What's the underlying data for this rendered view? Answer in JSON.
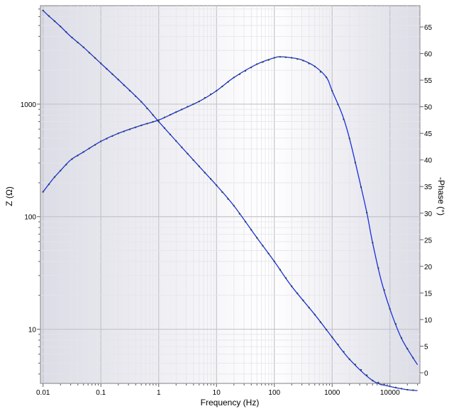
{
  "chart_data": {
    "type": "line",
    "xlabel": "Frequency (Hz)",
    "ylabel_left": "Z (Ω)",
    "ylabel_right": "-Phase (°)",
    "x_scale": "log",
    "xlim": [
      0.009,
      33000
    ],
    "x_ticks": [
      0.01,
      0.1,
      1,
      10,
      100,
      1000,
      10000
    ],
    "x_tick_labels": [
      "0.01",
      "0.1",
      "1",
      "10",
      "100",
      "1000",
      "10000"
    ],
    "y_left_scale": "log",
    "y_left_lim": [
      3.3,
      7500
    ],
    "y_left_ticks": [
      10,
      100,
      1000
    ],
    "y_left_tick_labels": [
      "10",
      "100",
      "1000"
    ],
    "y_right_lim": [
      -2,
      69
    ],
    "y_right_ticks": [
      0,
      5,
      10,
      15,
      20,
      25,
      30,
      35,
      40,
      45,
      50,
      55,
      60,
      65
    ],
    "y_right_tick_labels": [
      "0",
      "5",
      "10",
      "15",
      "20",
      "25",
      "30",
      "35",
      "40",
      "45",
      "50",
      "55",
      "60",
      "65"
    ],
    "grid": true,
    "series": [
      {
        "axis": "left",
        "color": "#1a2ee0",
        "marker_color": "#2e4a2e",
        "x": [
          0.01,
          0.012,
          0.015,
          0.02,
          0.03,
          0.05,
          0.1,
          0.2,
          0.5,
          1,
          2,
          5,
          10,
          20,
          50,
          100,
          200,
          500,
          1000,
          2000,
          5000,
          10000,
          20000,
          30000
        ],
        "y": [
          6800,
          6200,
          5600,
          4900,
          4000,
          3200,
          2300,
          1650,
          1050,
          700,
          470,
          280,
          190,
          125,
          65,
          40,
          24,
          13.5,
          8.5,
          5.4,
          3.5,
          3.1,
          2.9,
          2.85
        ]
      },
      {
        "axis": "right",
        "color": "#1a2ee0",
        "marker_color": "#2e4a2e",
        "x": [
          0.01,
          0.015,
          0.02,
          0.03,
          0.05,
          0.1,
          0.2,
          0.5,
          1,
          2,
          5,
          10,
          20,
          50,
          100,
          130,
          200,
          300,
          500,
          800,
          1000,
          1500,
          2000,
          3000,
          4000,
          5000,
          7000,
          10000,
          15000,
          20000,
          30000
        ],
        "y": [
          34,
          36.5,
          38,
          40,
          41.5,
          43.5,
          45,
          46.5,
          47.5,
          49,
          51,
          53,
          55.5,
          58,
          59.2,
          59.4,
          59.2,
          58.8,
          57.6,
          55.5,
          53,
          48.5,
          44,
          36,
          30,
          24.5,
          17.5,
          12,
          7,
          4.5,
          1.5
        ]
      }
    ]
  }
}
